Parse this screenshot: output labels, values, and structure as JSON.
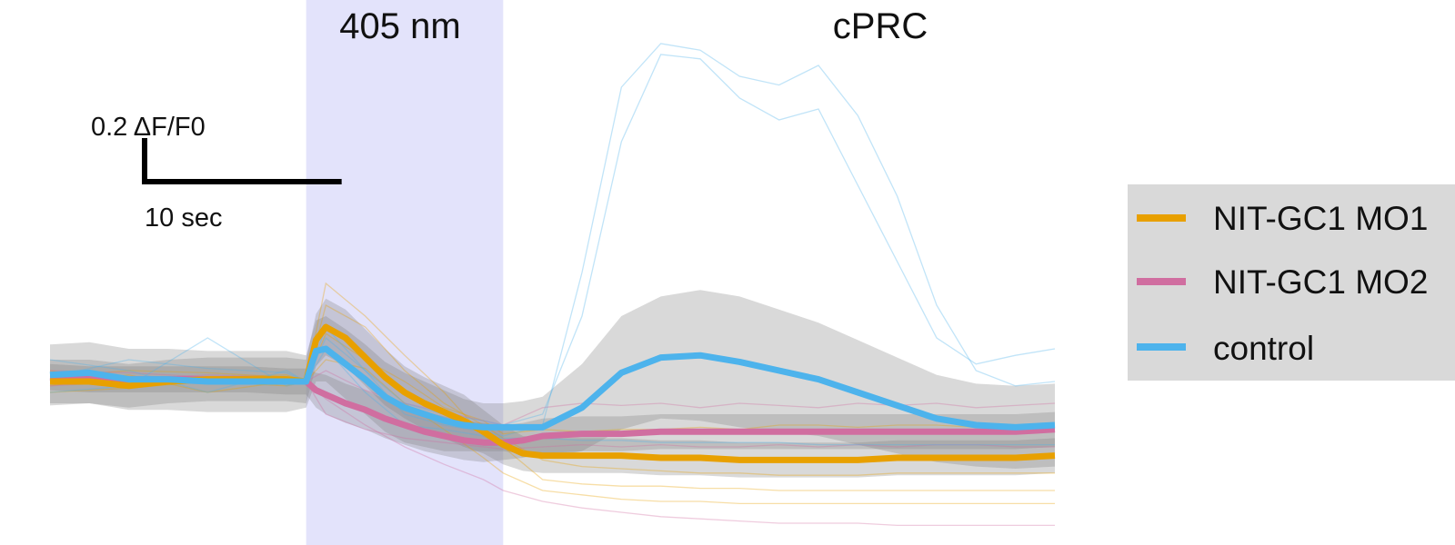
{
  "chart_data": {
    "type": "line",
    "title": "",
    "stimulus": {
      "label": "405 nm",
      "start_s": 0,
      "end_s": 10,
      "color": "#e3e3fb"
    },
    "region_label": "cPRC",
    "scalebar": {
      "y_label": "0.2 ΔF/F0",
      "y_value": 0.2,
      "x_label": "10 sec",
      "x_value": 10
    },
    "xlim": [
      -13,
      38
    ],
    "ylim": [
      -0.75,
      1.75
    ],
    "grid": false,
    "legend": {
      "placement": "right",
      "background": "#d9d9d9",
      "entries": [
        "NIT-GC1 MO1",
        "NIT-GC1 MO2",
        "control"
      ]
    },
    "x": [
      -13,
      -11,
      -9,
      -7,
      -5,
      -3,
      -1,
      0,
      0.5,
      1,
      2,
      3,
      4,
      5,
      6,
      7,
      8,
      9,
      10,
      11,
      12,
      14,
      16,
      18,
      20,
      22,
      24,
      26,
      28,
      30,
      32,
      34,
      36,
      38
    ],
    "series": [
      {
        "name": "NIT-GC1 MO1",
        "color": "#e8a000",
        "mean": [
          0,
          0,
          -0.02,
          0,
          0.01,
          0.01,
          0.01,
          0,
          0.19,
          0.25,
          0.2,
          0.11,
          0.02,
          -0.05,
          -0.1,
          -0.14,
          -0.18,
          -0.23,
          -0.29,
          -0.33,
          -0.34,
          -0.34,
          -0.34,
          -0.35,
          -0.35,
          -0.36,
          -0.36,
          -0.36,
          -0.36,
          -0.35,
          -0.35,
          -0.35,
          -0.35,
          -0.34
        ],
        "sem": [
          0.1,
          0.1,
          0.1,
          0.1,
          0.1,
          0.1,
          0.1,
          0.1,
          0.12,
          0.13,
          0.13,
          0.13,
          0.13,
          0.12,
          0.12,
          0.12,
          0.12,
          0.1,
          0.09,
          0.08,
          0.08,
          0.08,
          0.08,
          0.08,
          0.08,
          0.08,
          0.08,
          0.08,
          0.08,
          0.08,
          0.08,
          0.08,
          0.08,
          0.08
        ]
      },
      {
        "name": "NIT-GC1 MO2",
        "color": "#d06ea0",
        "mean": [
          0.02,
          0.01,
          0.01,
          0.01,
          0.01,
          0.01,
          0,
          0,
          -0.04,
          -0.06,
          -0.1,
          -0.13,
          -0.17,
          -0.2,
          -0.23,
          -0.25,
          -0.27,
          -0.28,
          -0.28,
          -0.27,
          -0.25,
          -0.24,
          -0.24,
          -0.23,
          -0.23,
          -0.23,
          -0.23,
          -0.23,
          -0.23,
          -0.23,
          -0.23,
          -0.23,
          -0.23,
          -0.22
        ],
        "sem": [
          0.06,
          0.06,
          0.06,
          0.06,
          0.06,
          0.06,
          0.06,
          0.06,
          0.08,
          0.09,
          0.09,
          0.09,
          0.09,
          0.09,
          0.09,
          0.09,
          0.09,
          0.09,
          0.08,
          0.08,
          0.08,
          0.08,
          0.08,
          0.08,
          0.08,
          0.08,
          0.08,
          0.08,
          0.08,
          0.08,
          0.08,
          0.08,
          0.08,
          0.08
        ]
      },
      {
        "name": "control",
        "color": "#4db3ec",
        "mean": [
          0.03,
          0.04,
          0.01,
          0.01,
          0,
          0,
          0,
          0,
          0.14,
          0.15,
          0.08,
          0.01,
          -0.07,
          -0.12,
          -0.15,
          -0.18,
          -0.2,
          -0.21,
          -0.21,
          -0.21,
          -0.21,
          -0.12,
          0.04,
          0.11,
          0.12,
          0.09,
          0.05,
          0.01,
          -0.05,
          -0.11,
          -0.17,
          -0.2,
          -0.21,
          -0.2
        ],
        "sem": [
          0.14,
          0.14,
          0.14,
          0.14,
          0.14,
          0.14,
          0.14,
          0.12,
          0.14,
          0.15,
          0.16,
          0.16,
          0.16,
          0.16,
          0.15,
          0.14,
          0.12,
          0.11,
          0.11,
          0.12,
          0.14,
          0.2,
          0.26,
          0.28,
          0.3,
          0.3,
          0.28,
          0.26,
          0.24,
          0.22,
          0.2,
          0.19,
          0.19,
          0.19
        ]
      }
    ],
    "individual_traces": {
      "x": [
        -13,
        -9,
        -5,
        -1,
        0,
        1,
        3,
        5,
        7,
        9,
        10,
        12,
        14,
        16,
        18,
        20,
        22,
        24,
        26,
        28,
        30,
        32,
        34,
        36,
        38
      ],
      "NIT-GC1 MO1": [
        [
          0.02,
          0.05,
          0.04,
          0.02,
          0,
          0.45,
          0.3,
          0.12,
          -0.05,
          -0.25,
          -0.3,
          -0.45,
          -0.47,
          -0.48,
          -0.48,
          -0.49,
          -0.49,
          -0.5,
          -0.5,
          -0.5,
          -0.5,
          -0.5,
          -0.5,
          -0.5,
          -0.5
        ],
        [
          -0.02,
          0.03,
          -0.05,
          0,
          0,
          0.35,
          0.25,
          0.05,
          -0.1,
          -0.2,
          -0.26,
          -0.36,
          -0.39,
          -0.4,
          -0.41,
          -0.42,
          -0.42,
          -0.43,
          -0.43,
          -0.43,
          -0.42,
          -0.42,
          -0.42,
          -0.42,
          -0.42
        ],
        [
          0.05,
          0,
          0.02,
          0.03,
          0,
          0.22,
          0.1,
          0,
          -0.12,
          -0.18,
          -0.24,
          -0.22,
          -0.23,
          -0.22,
          -0.22,
          -0.21,
          -0.22,
          -0.2,
          -0.2,
          -0.21,
          -0.2,
          -0.2,
          -0.21,
          -0.2,
          -0.2
        ],
        [
          -0.05,
          -0.03,
          0,
          -0.02,
          0,
          0.1,
          0.06,
          -0.1,
          -0.22,
          -0.35,
          -0.42,
          -0.5,
          -0.52,
          -0.54,
          -0.55,
          -0.55,
          -0.56,
          -0.56,
          -0.56,
          -0.56,
          -0.56,
          -0.56,
          -0.56,
          -0.56,
          -0.56
        ]
      ],
      "NIT-GC1 MO2": [
        [
          0.03,
          0.01,
          0.03,
          0.02,
          0,
          -0.08,
          -0.2,
          -0.3,
          -0.38,
          -0.45,
          -0.5,
          -0.55,
          -0.58,
          -0.6,
          -0.62,
          -0.63,
          -0.64,
          -0.65,
          -0.65,
          -0.65,
          -0.66,
          -0.66,
          -0.66,
          -0.66,
          -0.66
        ],
        [
          -0.02,
          0,
          -0.01,
          0,
          0,
          0.05,
          -0.04,
          -0.1,
          -0.14,
          -0.18,
          -0.2,
          -0.12,
          -0.1,
          -0.11,
          -0.1,
          -0.12,
          -0.1,
          -0.11,
          -0.12,
          -0.1,
          -0.11,
          -0.1,
          -0.12,
          -0.11,
          -0.1
        ],
        [
          0.05,
          0.04,
          0.02,
          0.01,
          0,
          -0.15,
          -0.22,
          -0.26,
          -0.28,
          -0.3,
          -0.31,
          -0.3,
          -0.29,
          -0.3,
          -0.29,
          -0.3,
          -0.3,
          -0.29,
          -0.3,
          -0.29,
          -0.3,
          -0.29,
          -0.29,
          -0.3,
          -0.3
        ]
      ],
      "control": [
        [
          0.02,
          0.1,
          0.06,
          0.04,
          0,
          0.2,
          0.05,
          -0.15,
          -0.2,
          -0.23,
          -0.25,
          -0.2,
          0.5,
          1.35,
          1.55,
          1.52,
          1.4,
          1.36,
          1.45,
          1.22,
          0.85,
          0.35,
          0.05,
          -0.02,
          0
        ],
        [
          0.1,
          0.05,
          -0.05,
          0.05,
          0,
          0.25,
          0.05,
          -0.1,
          -0.15,
          -0.18,
          -0.2,
          -0.15,
          0.3,
          1.1,
          1.5,
          1.48,
          1.3,
          1.2,
          1.25,
          0.9,
          0.55,
          0.2,
          0.08,
          0.12,
          0.15
        ],
        [
          -0.05,
          -0.02,
          0.2,
          -0.02,
          0,
          0.15,
          -0.05,
          -0.2,
          -0.22,
          -0.25,
          -0.26,
          -0.26,
          -0.27,
          -0.27,
          -0.28,
          -0.28,
          -0.28,
          -0.28,
          -0.29,
          -0.29,
          -0.29,
          -0.29,
          -0.29,
          -0.29,
          -0.29
        ]
      ]
    }
  }
}
